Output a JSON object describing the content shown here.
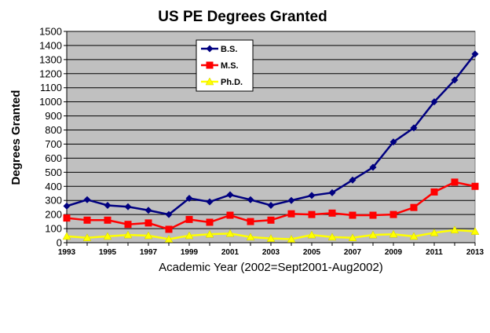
{
  "chart_data": {
    "type": "line",
    "title": "US PE Degrees Granted",
    "xlabel": "Academic Year (2002=Sept2001-Aug2002)",
    "ylabel": "Degrees Granted",
    "xlim": [
      1993,
      2013
    ],
    "ylim": [
      0,
      1500
    ],
    "y_ticks": [
      0,
      100,
      200,
      300,
      400,
      500,
      600,
      700,
      800,
      900,
      1000,
      1100,
      1200,
      1300,
      1400,
      1500
    ],
    "x_ticks": [
      1993,
      1995,
      1997,
      1999,
      2001,
      2003,
      2005,
      2007,
      2009,
      2011,
      2013
    ],
    "grid": "horizontal",
    "legend_position": "top-center",
    "x": [
      1993,
      1994,
      1995,
      1996,
      1997,
      1998,
      1999,
      2000,
      2001,
      2002,
      2003,
      2004,
      2005,
      2006,
      2007,
      2008,
      2009,
      2010,
      2011,
      2012,
      2013
    ],
    "series": [
      {
        "name": "B.S.",
        "color": "#000080",
        "marker": "diamond",
        "values": [
          260,
          305,
          265,
          255,
          230,
          200,
          315,
          290,
          340,
          305,
          265,
          300,
          335,
          355,
          445,
          535,
          715,
          815,
          1000,
          1155,
          1340
        ]
      },
      {
        "name": "M.S.",
        "color": "#ff0000",
        "marker": "square",
        "values": [
          175,
          160,
          160,
          130,
          140,
          95,
          165,
          145,
          195,
          150,
          160,
          205,
          200,
          210,
          195,
          195,
          200,
          250,
          360,
          430,
          400
        ]
      },
      {
        "name": "Ph.D.",
        "color": "#ffff00",
        "marker": "triangle",
        "values": [
          45,
          35,
          45,
          55,
          50,
          25,
          50,
          60,
          65,
          40,
          30,
          25,
          55,
          40,
          35,
          55,
          60,
          45,
          70,
          90,
          80
        ]
      }
    ]
  }
}
